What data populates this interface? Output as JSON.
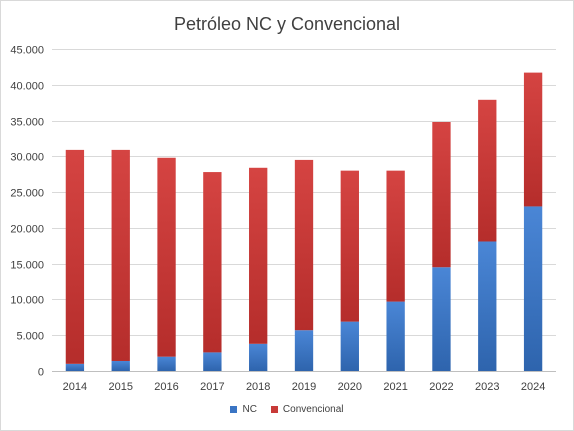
{
  "chart_data": {
    "type": "bar",
    "stacked": true,
    "title": "Petróleo NC y Convencional",
    "xlabel": "",
    "ylabel": "",
    "categories": [
      "2014",
      "2015",
      "2016",
      "2017",
      "2018",
      "2019",
      "2020",
      "2021",
      "2022",
      "2023",
      "2024"
    ],
    "series": [
      {
        "name": "NC",
        "color": "#3a75c4",
        "values": [
          1000,
          1400,
          2000,
          2600,
          3800,
          5700,
          6900,
          9700,
          14500,
          18100,
          23000
        ]
      },
      {
        "name": "Convencional",
        "color": "#c83a38",
        "values": [
          29900,
          29500,
          27800,
          25200,
          24600,
          23800,
          21100,
          18300,
          20300,
          19800,
          18700
        ]
      }
    ],
    "ylim": [
      0,
      45000
    ],
    "yticks": [
      "0",
      "5.000",
      "10.000",
      "15.000",
      "20.000",
      "25.000",
      "30.000",
      "35.000",
      "40.000",
      "45.000"
    ],
    "grid": true,
    "legend_position": "bottom"
  }
}
